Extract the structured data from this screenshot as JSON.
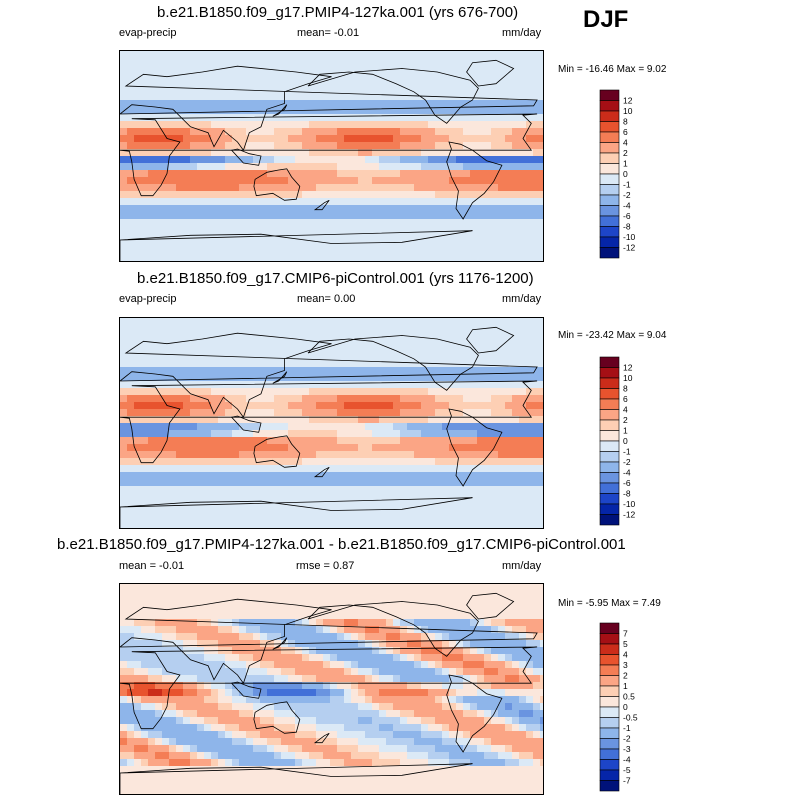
{
  "season": "DJF",
  "panels": [
    {
      "title": "b.e21.B1850.f09_g17.PMIP4-127ka.001 (yrs 676-700)",
      "left_label": "evap-precip",
      "mean_label": "mean=  -0.01",
      "units": "mm/day",
      "minmax": "Min = -16.46 Max =  9.02"
    },
    {
      "title": "b.e21.B1850.f09_g17.CMIP6-piControl.001 (yrs 1176-1200)",
      "left_label": "evap-precip",
      "mean_label": "mean=  0.00",
      "units": "mm/day",
      "minmax": "Min = -23.42 Max =  9.04"
    },
    {
      "title": "b.e21.B1850.f09_g17.PMIP4-127ka.001 - b.e21.B1850.f09_g17.CMIP6-piControl.001",
      "left_label": "mean =  -0.01",
      "mean_label": "rmse =  0.87",
      "units": "mm/day",
      "minmax": "Min = -5.95 Max =  7.49"
    }
  ],
  "chart_data": [
    {
      "type": "heatmap",
      "title": "b.e21.B1850.f09_g17.PMIP4-127ka.001 (yrs 676-700)",
      "variable": "evap-precip",
      "units": "mm/day",
      "mean": -0.01,
      "min": -16.46,
      "max": 9.02,
      "colorbar_levels": [
        "12",
        "10",
        "8",
        "6",
        "4",
        "2",
        "1",
        "0",
        "-1",
        "-2",
        "-4",
        "-6",
        "-8",
        "-10",
        "-12"
      ],
      "colors": [
        "#67001f",
        "#a50f15",
        "#cb2c1a",
        "#e8532e",
        "#f47d55",
        "#fba585",
        "#fdcfb4",
        "#fbe7dc",
        "#dbe9f6",
        "#b5cff0",
        "#8eb5ea",
        "#6a94e0",
        "#4270d8",
        "#1d45c8",
        "#0525a8",
        "#00127a"
      ]
    },
    {
      "type": "heatmap",
      "title": "b.e21.B1850.f09_g17.CMIP6-piControl.001 (yrs 1176-1200)",
      "variable": "evap-precip",
      "units": "mm/day",
      "mean": 0.0,
      "min": -23.42,
      "max": 9.04,
      "colorbar_levels": [
        "12",
        "10",
        "8",
        "6",
        "4",
        "2",
        "1",
        "0",
        "-1",
        "-2",
        "-4",
        "-6",
        "-8",
        "-10",
        "-12"
      ],
      "colors": [
        "#67001f",
        "#a50f15",
        "#cb2c1a",
        "#e8532e",
        "#f47d55",
        "#fba585",
        "#fdcfb4",
        "#fbe7dc",
        "#dbe9f6",
        "#b5cff0",
        "#8eb5ea",
        "#6a94e0",
        "#4270d8",
        "#1d45c8",
        "#0525a8",
        "#00127a"
      ]
    },
    {
      "type": "heatmap",
      "title": "b.e21.B1850.f09_g17.PMIP4-127ka.001 - b.e21.B1850.f09_g17.CMIP6-piControl.001",
      "units": "mm/day",
      "mean": -0.01,
      "rmse": 0.87,
      "min": -5.95,
      "max": 7.49,
      "colorbar_levels": [
        "7",
        "5",
        "4",
        "3",
        "2",
        "1",
        "0.5",
        "0",
        "-0.5",
        "-1",
        "-2",
        "-3",
        "-4",
        "-5",
        "-7"
      ],
      "colors": [
        "#67001f",
        "#a50f15",
        "#cb2c1a",
        "#e8532e",
        "#f47d55",
        "#fba585",
        "#fdcfb4",
        "#fbe7dc",
        "#dbe9f6",
        "#b5cff0",
        "#8eb5ea",
        "#6a94e0",
        "#4270d8",
        "#1d45c8",
        "#0525a8",
        "#00127a"
      ]
    }
  ]
}
